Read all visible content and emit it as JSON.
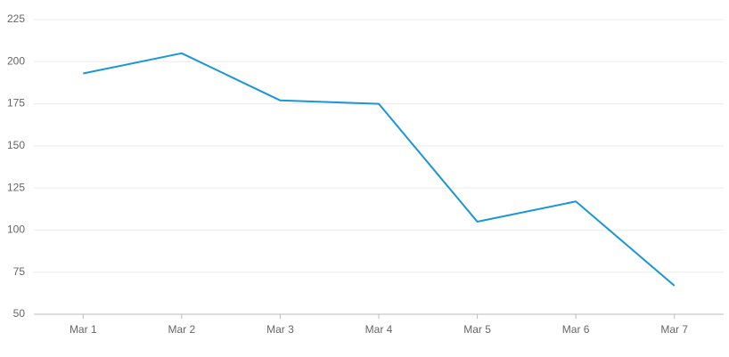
{
  "chart_data": {
    "type": "line",
    "categories": [
      "Mar 1",
      "Mar 2",
      "Mar 3",
      "Mar 4",
      "Mar 5",
      "Mar 6",
      "Mar 7"
    ],
    "series": [
      {
        "color": "#1a96d8",
        "values": [
          193,
          205,
          177,
          175,
          105,
          117,
          67
        ]
      }
    ],
    "ylim": [
      50,
      225
    ],
    "yticks": [
      50,
      75,
      100,
      125,
      150,
      175,
      200,
      225
    ],
    "grid": true
  }
}
